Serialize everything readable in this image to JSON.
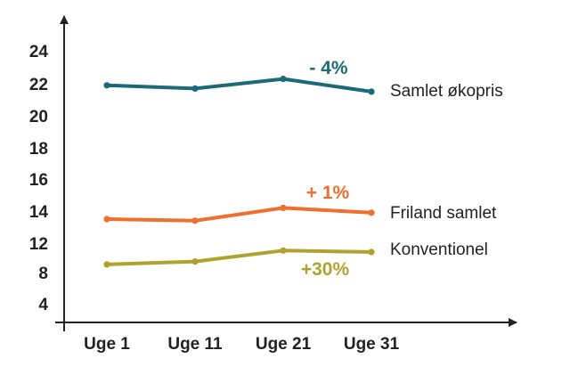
{
  "chart_data": {
    "type": "line",
    "title": "",
    "xlabel": "",
    "ylabel": "",
    "categories": [
      "Uge 1",
      "Uge 11",
      "Uge 21",
      "Uge 31"
    ],
    "yticks": [
      "24",
      "22",
      "20",
      "18",
      "16",
      "14",
      "12",
      "8",
      "4"
    ],
    "grid": false,
    "series": [
      {
        "name": "Samlet økopris",
        "values": [
          21.9,
          21.7,
          22.3,
          21.5
        ],
        "color": "#1a6a78",
        "annotation": "- 4%"
      },
      {
        "name": "Friland samlet",
        "values": [
          13.5,
          13.4,
          14.2,
          13.9
        ],
        "color": "#f06e2e",
        "annotation": "+ 1%"
      },
      {
        "name": "Konventionel",
        "values": [
          9.1,
          9.5,
          11.0,
          10.8
        ],
        "color": "#b0a22e",
        "annotation": "+30%"
      }
    ]
  }
}
